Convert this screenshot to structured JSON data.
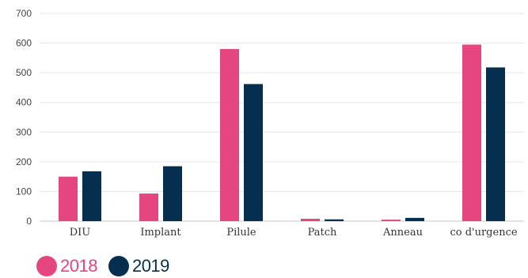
{
  "chart_data": {
    "type": "bar",
    "categories": [
      "DIU",
      "Implant",
      "Pilule",
      "Patch",
      "Anneau",
      "co d'urgence"
    ],
    "series": [
      {
        "name": "2018",
        "color": "#e5467f",
        "values": [
          150,
          93,
          580,
          8,
          5,
          595
        ]
      },
      {
        "name": "2019",
        "color": "#062f4f",
        "values": [
          168,
          185,
          462,
          6,
          11,
          518
        ]
      }
    ],
    "yticks": [
      0,
      100,
      200,
      300,
      400,
      500,
      600,
      700
    ],
    "ylim": [
      0,
      700
    ],
    "title": "",
    "xlabel": "",
    "ylabel": "",
    "grid": true,
    "legend_position": "bottom-left"
  }
}
